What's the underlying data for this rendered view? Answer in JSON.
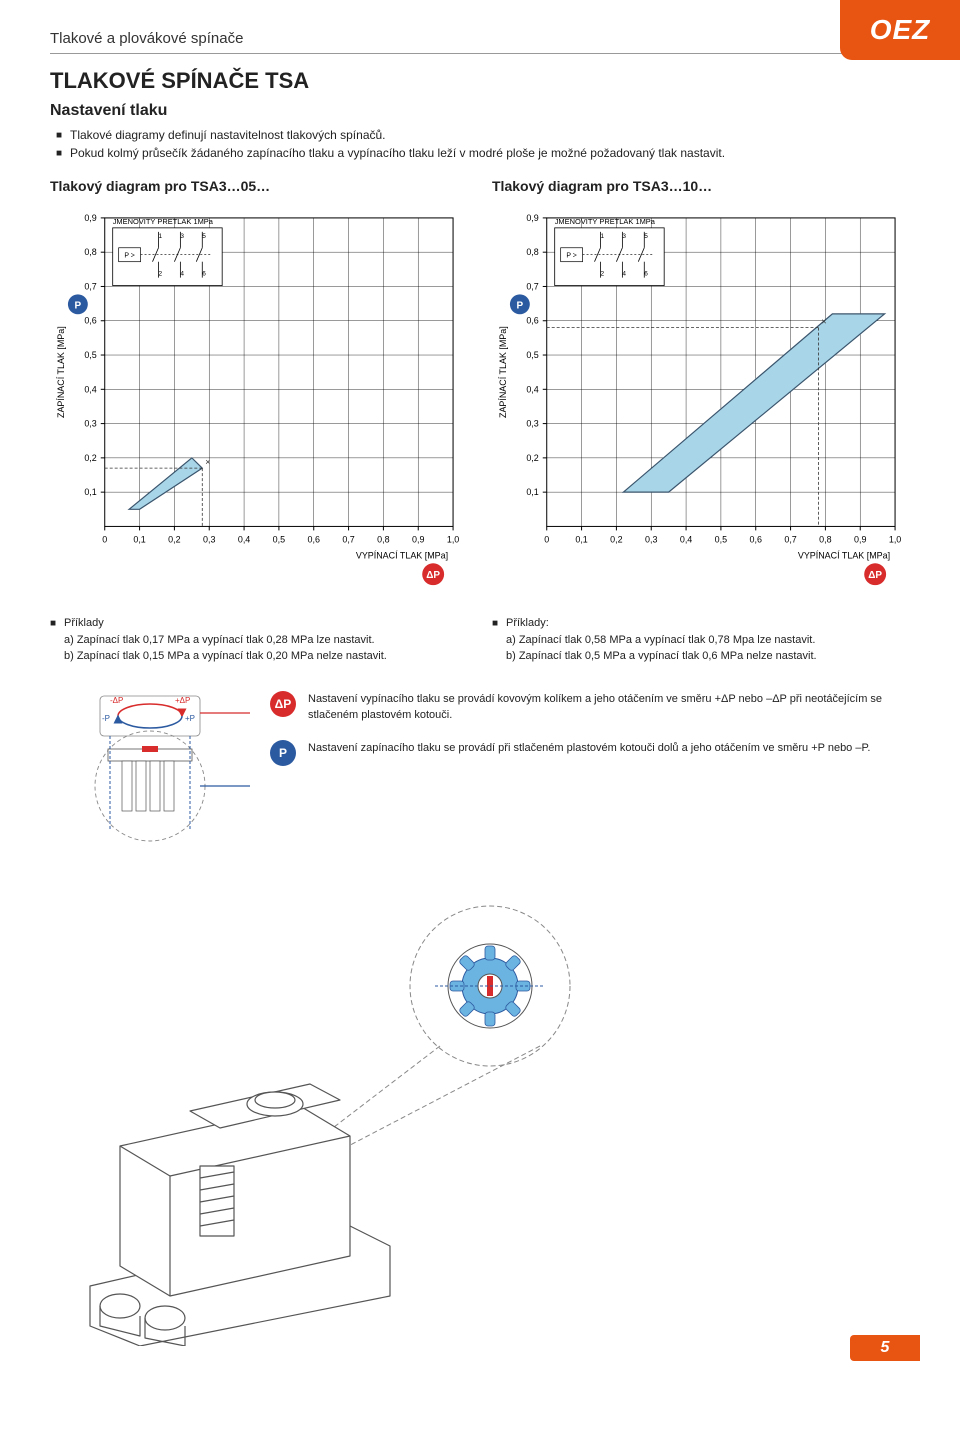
{
  "logo": "OEZ",
  "header": "Tlakové a plovákové spínače",
  "main_title": "TLAKOVÉ SPÍNAČE TSA",
  "section_title": "Nastavení tlaku",
  "intro_bullets": [
    "Tlakové diagramy definují nastavitelnost tlakových spínačů.",
    "Pokud kolmý průsečík žádaného zapínacího tlaku a vypínacího tlaku leží v modré ploše je možné požadovaný tlak nastavit."
  ],
  "chart_left": {
    "title": "Tlakový diagram pro TSA3…05…",
    "inset_label": "JMENOVITÝ PŘETLAK 1MPa",
    "p_label": "P >",
    "terminals_top": [
      "1",
      "3",
      "5"
    ],
    "terminals_bot": [
      "2",
      "4",
      "6"
    ],
    "y_label": "ZAPÍNACÍ TLAK [MPa]",
    "x_label": "VYPÍNACÍ TLAK [MPa]",
    "y_badge": "P",
    "x_badge": "ΔP",
    "x_ticks": [
      "0",
      "0,1",
      "0,2",
      "0,3",
      "0,4",
      "0,5",
      "0,6",
      "0,7",
      "0,8",
      "0,9",
      "1,0"
    ],
    "y_ticks": [
      "0,1",
      "0,2",
      "0,3",
      "0,4",
      "0,5",
      "0,6",
      "0,7",
      "0,8",
      "0,9"
    ],
    "region": [
      [
        0.07,
        0.05
      ],
      [
        0.1,
        0.05
      ],
      [
        0.28,
        0.17
      ],
      [
        0.25,
        0.2
      ],
      [
        0.07,
        0.05
      ]
    ],
    "region_fill": "#a9d5e8",
    "region_stroke": "#3a556d",
    "example_point": [
      0.28,
      0.17
    ],
    "axis_color": "#000000",
    "grid_color": "#000000",
    "bg": "#ffffff"
  },
  "chart_right": {
    "title": "Tlakový diagram pro TSA3…10…",
    "inset_label": "JMENOVITÝ PŘETLAK 1MPa",
    "p_label": "P >",
    "terminals_top": [
      "1",
      "3",
      "5"
    ],
    "terminals_bot": [
      "2",
      "4",
      "6"
    ],
    "y_label": "ZAPÍNACÍ TLAK [MPa]",
    "x_label": "VYPÍNACÍ TLAK [MPa]",
    "y_badge": "P",
    "x_badge": "ΔP",
    "x_ticks": [
      "0",
      "0,1",
      "0,2",
      "0,3",
      "0,4",
      "0,5",
      "0,6",
      "0,7",
      "0,8",
      "0,9",
      "1,0"
    ],
    "y_ticks": [
      "0,1",
      "0,2",
      "0,3",
      "0,4",
      "0,5",
      "0,6",
      "0,7",
      "0,8",
      "0,9"
    ],
    "region": [
      [
        0.22,
        0.1
      ],
      [
        0.35,
        0.1
      ],
      [
        0.97,
        0.62
      ],
      [
        0.82,
        0.62
      ],
      [
        0.22,
        0.1
      ]
    ],
    "region_fill": "#a9d5e8",
    "region_stroke": "#3a556d",
    "example_point": [
      0.78,
      0.58
    ],
    "axis_color": "#000000",
    "grid_color": "#000000",
    "bg": "#ffffff"
  },
  "examples_left": {
    "head": "Příklady",
    "a": "a) Zapínací tlak 0,17 MPa a vypínací tlak 0,28 MPa lze nastavit.",
    "b": "b) Zapínací tlak 0,15 MPa a vypínací tlak 0,20 MPa nelze nastavit."
  },
  "examples_right": {
    "head": "Příklady:",
    "a": "a) Zapínací tlak 0,58 MPa a vypínací tlak 0,78 Mpa lze nastavit.",
    "b": "b) Zapínací tlak 0,5 MPa a vypínací tlak 0,6 MPa nelze nastavit."
  },
  "adjust_diagram": {
    "dp_minus": "-ΔP",
    "dp_plus": "+ΔP",
    "p_minus": "-P",
    "p_plus": "+P"
  },
  "adjust_dp": {
    "badge": "ΔP",
    "text": "Nastavení vypínacího tlaku se provádí kovovým kolíkem a jeho otáčením ve směru +ΔP nebo –ΔP při neotáčejícím se stlačeném plastovém kotouči."
  },
  "adjust_p": {
    "badge": "P",
    "text": "Nastavení zapínacího tlaku se provádí při stlačeném plastovém kotouči dolů a jeho otáčením ve směru +P nebo –P."
  },
  "page_number": "5"
}
